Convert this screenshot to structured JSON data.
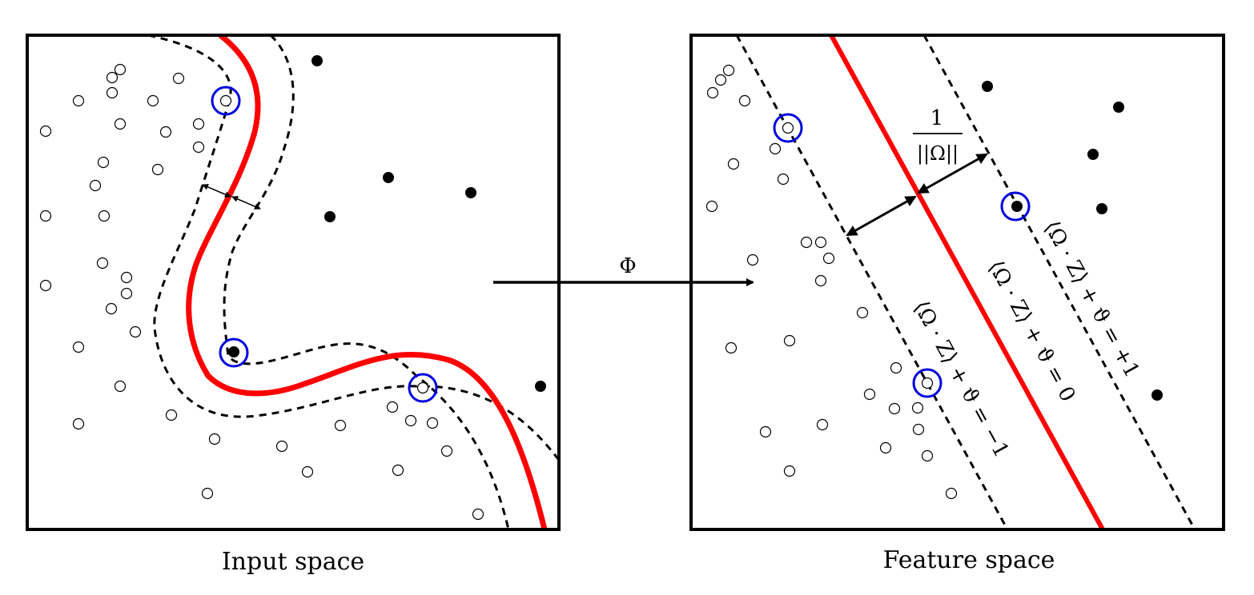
{
  "panels": {
    "input": {
      "caption": "Input space"
    },
    "feature": {
      "caption": "Feature space"
    }
  },
  "mapping": {
    "label": "Φ"
  },
  "margin": {
    "numerator": "1",
    "denominator": "||Ω||"
  },
  "hyperplanes": {
    "decision": "⟨Ω · Z⟩ + ϑ = 0",
    "positive": "⟨Ω · Z⟩ + ϑ = +1",
    "negative": "⟨Ω · Z⟩ + ϑ = −1"
  },
  "colors": {
    "decision_boundary": "#ff0000",
    "support_vector_ring": "#0000dd",
    "margin_line": "#000000",
    "frame": "#000000"
  },
  "classes": {
    "negative": "open-circle",
    "positive": "filled-circle"
  }
}
